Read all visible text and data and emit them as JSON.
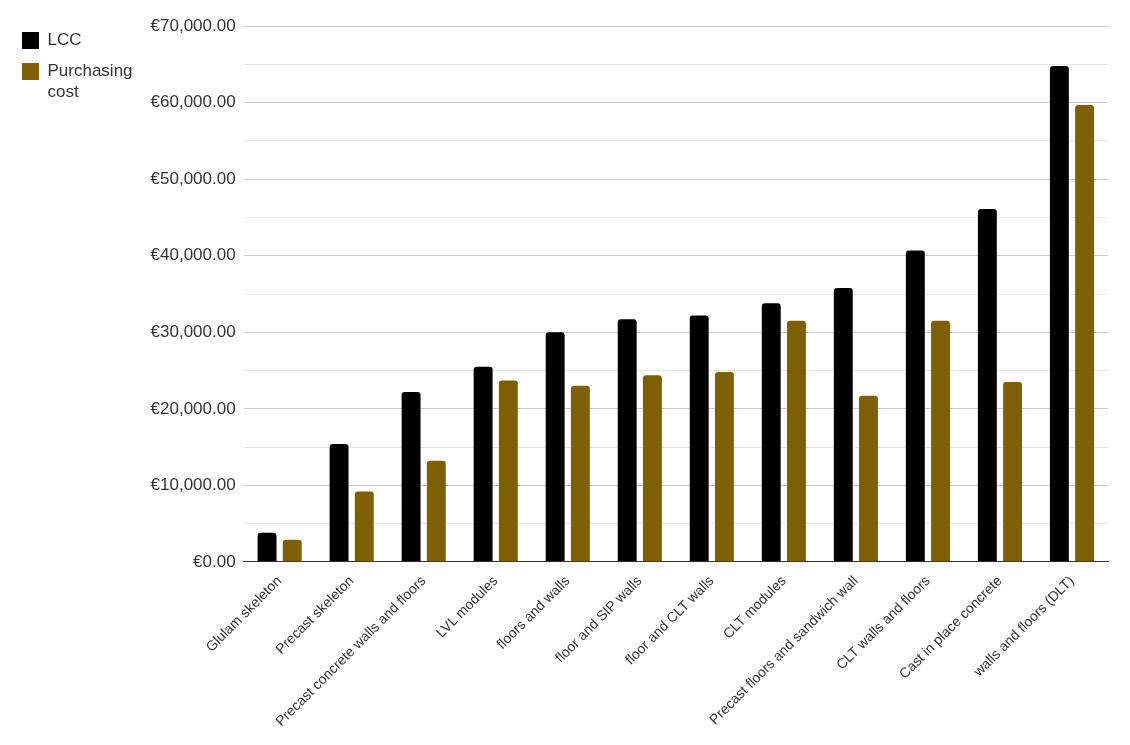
{
  "chart_data": {
    "type": "bar",
    "categories": [
      "Glulam skeleton",
      "Precast skeleton",
      "Precast concrete walls and floors",
      "LVL modules",
      "floors and walls",
      "floor and SIP walls",
      "floor and CLT walls",
      "CLT modules",
      "Precast floors and sandwich wall",
      "CLT walls and floors",
      "Cast in place concrete",
      "walls and floors (DLT)"
    ],
    "series": [
      {
        "name": "LCC",
        "color": "#000000",
        "values": [
          3800,
          15400,
          22200,
          25500,
          30000,
          31700,
          32200,
          33800,
          35800,
          40700,
          46100,
          64800
        ]
      },
      {
        "name": "Purchasing cost",
        "color": "#7f6000",
        "values": [
          2900,
          9200,
          13200,
          23700,
          23000,
          24400,
          24800,
          31500,
          21700,
          31500,
          23500,
          59700
        ]
      }
    ],
    "ylim": [
      0,
      70000
    ],
    "yticks": [
      {
        "value": 0,
        "label": "€0.00"
      },
      {
        "value": 5000,
        "label": null
      },
      {
        "value": 10000,
        "label": "€10,000.00"
      },
      {
        "value": 15000,
        "label": null
      },
      {
        "value": 20000,
        "label": "€20,000.00"
      },
      {
        "value": 25000,
        "label": null
      },
      {
        "value": 30000,
        "label": "€30,000.00"
      },
      {
        "value": 35000,
        "label": null
      },
      {
        "value": 40000,
        "label": "€40,000.00"
      },
      {
        "value": 45000,
        "label": null
      },
      {
        "value": 50000,
        "label": "€50,000.00"
      },
      {
        "value": 55000,
        "label": null
      },
      {
        "value": 60000,
        "label": "€60,000.00"
      },
      {
        "value": 65000,
        "label": null
      },
      {
        "value": 70000,
        "label": "€70,000.00"
      }
    ],
    "grid": "y",
    "legend": "top left"
  }
}
